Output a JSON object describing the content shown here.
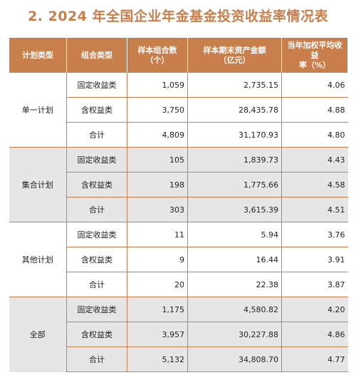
{
  "title": "2. 2024 年全国企业年金基金投资收益率情况表",
  "headers": {
    "plan_type": "计划类型",
    "portfolio_type": "组合类型",
    "count": "样本组合数\n（个）",
    "assets": "样本期末资产金额\n（亿元）",
    "return_rate": "当年加权平均收益\n率（%）"
  },
  "groups": [
    {
      "name": "单一计划",
      "rows": [
        {
          "type": "固定收益类",
          "count": "1,059",
          "assets": "2,735.15",
          "rate": "4.06"
        },
        {
          "type": "含权益类",
          "count": "3,750",
          "assets": "28,435.78",
          "rate": "4.88"
        },
        {
          "type": "合计",
          "count": "4,809",
          "assets": "31,170.93",
          "rate": "4.80"
        }
      ]
    },
    {
      "name": "集合计划",
      "rows": [
        {
          "type": "固定收益类",
          "count": "105",
          "assets": "1,839.73",
          "rate": "4.43"
        },
        {
          "type": "含权益类",
          "count": "198",
          "assets": "1,775.66",
          "rate": "4.58"
        },
        {
          "type": "合计",
          "count": "303",
          "assets": "3,615.39",
          "rate": "4.51"
        }
      ]
    },
    {
      "name": "其他计划",
      "rows": [
        {
          "type": "固定收益类",
          "count": "11",
          "assets": "5.94",
          "rate": "3.76"
        },
        {
          "type": "含权益类",
          "count": "9",
          "assets": "16.44",
          "rate": "3.91"
        },
        {
          "type": "合计",
          "count": "20",
          "assets": "22.38",
          "rate": "3.87"
        }
      ]
    },
    {
      "name": "全部",
      "rows": [
        {
          "type": "固定收益类",
          "count": "1,175",
          "assets": "4,580.82",
          "rate": "4.20"
        },
        {
          "type": "含权益类",
          "count": "3,957",
          "assets": "30,227.88",
          "rate": "4.86"
        },
        {
          "type": "合计",
          "count": "5,132",
          "assets": "34,808.70",
          "rate": "4.77"
        }
      ]
    }
  ]
}
